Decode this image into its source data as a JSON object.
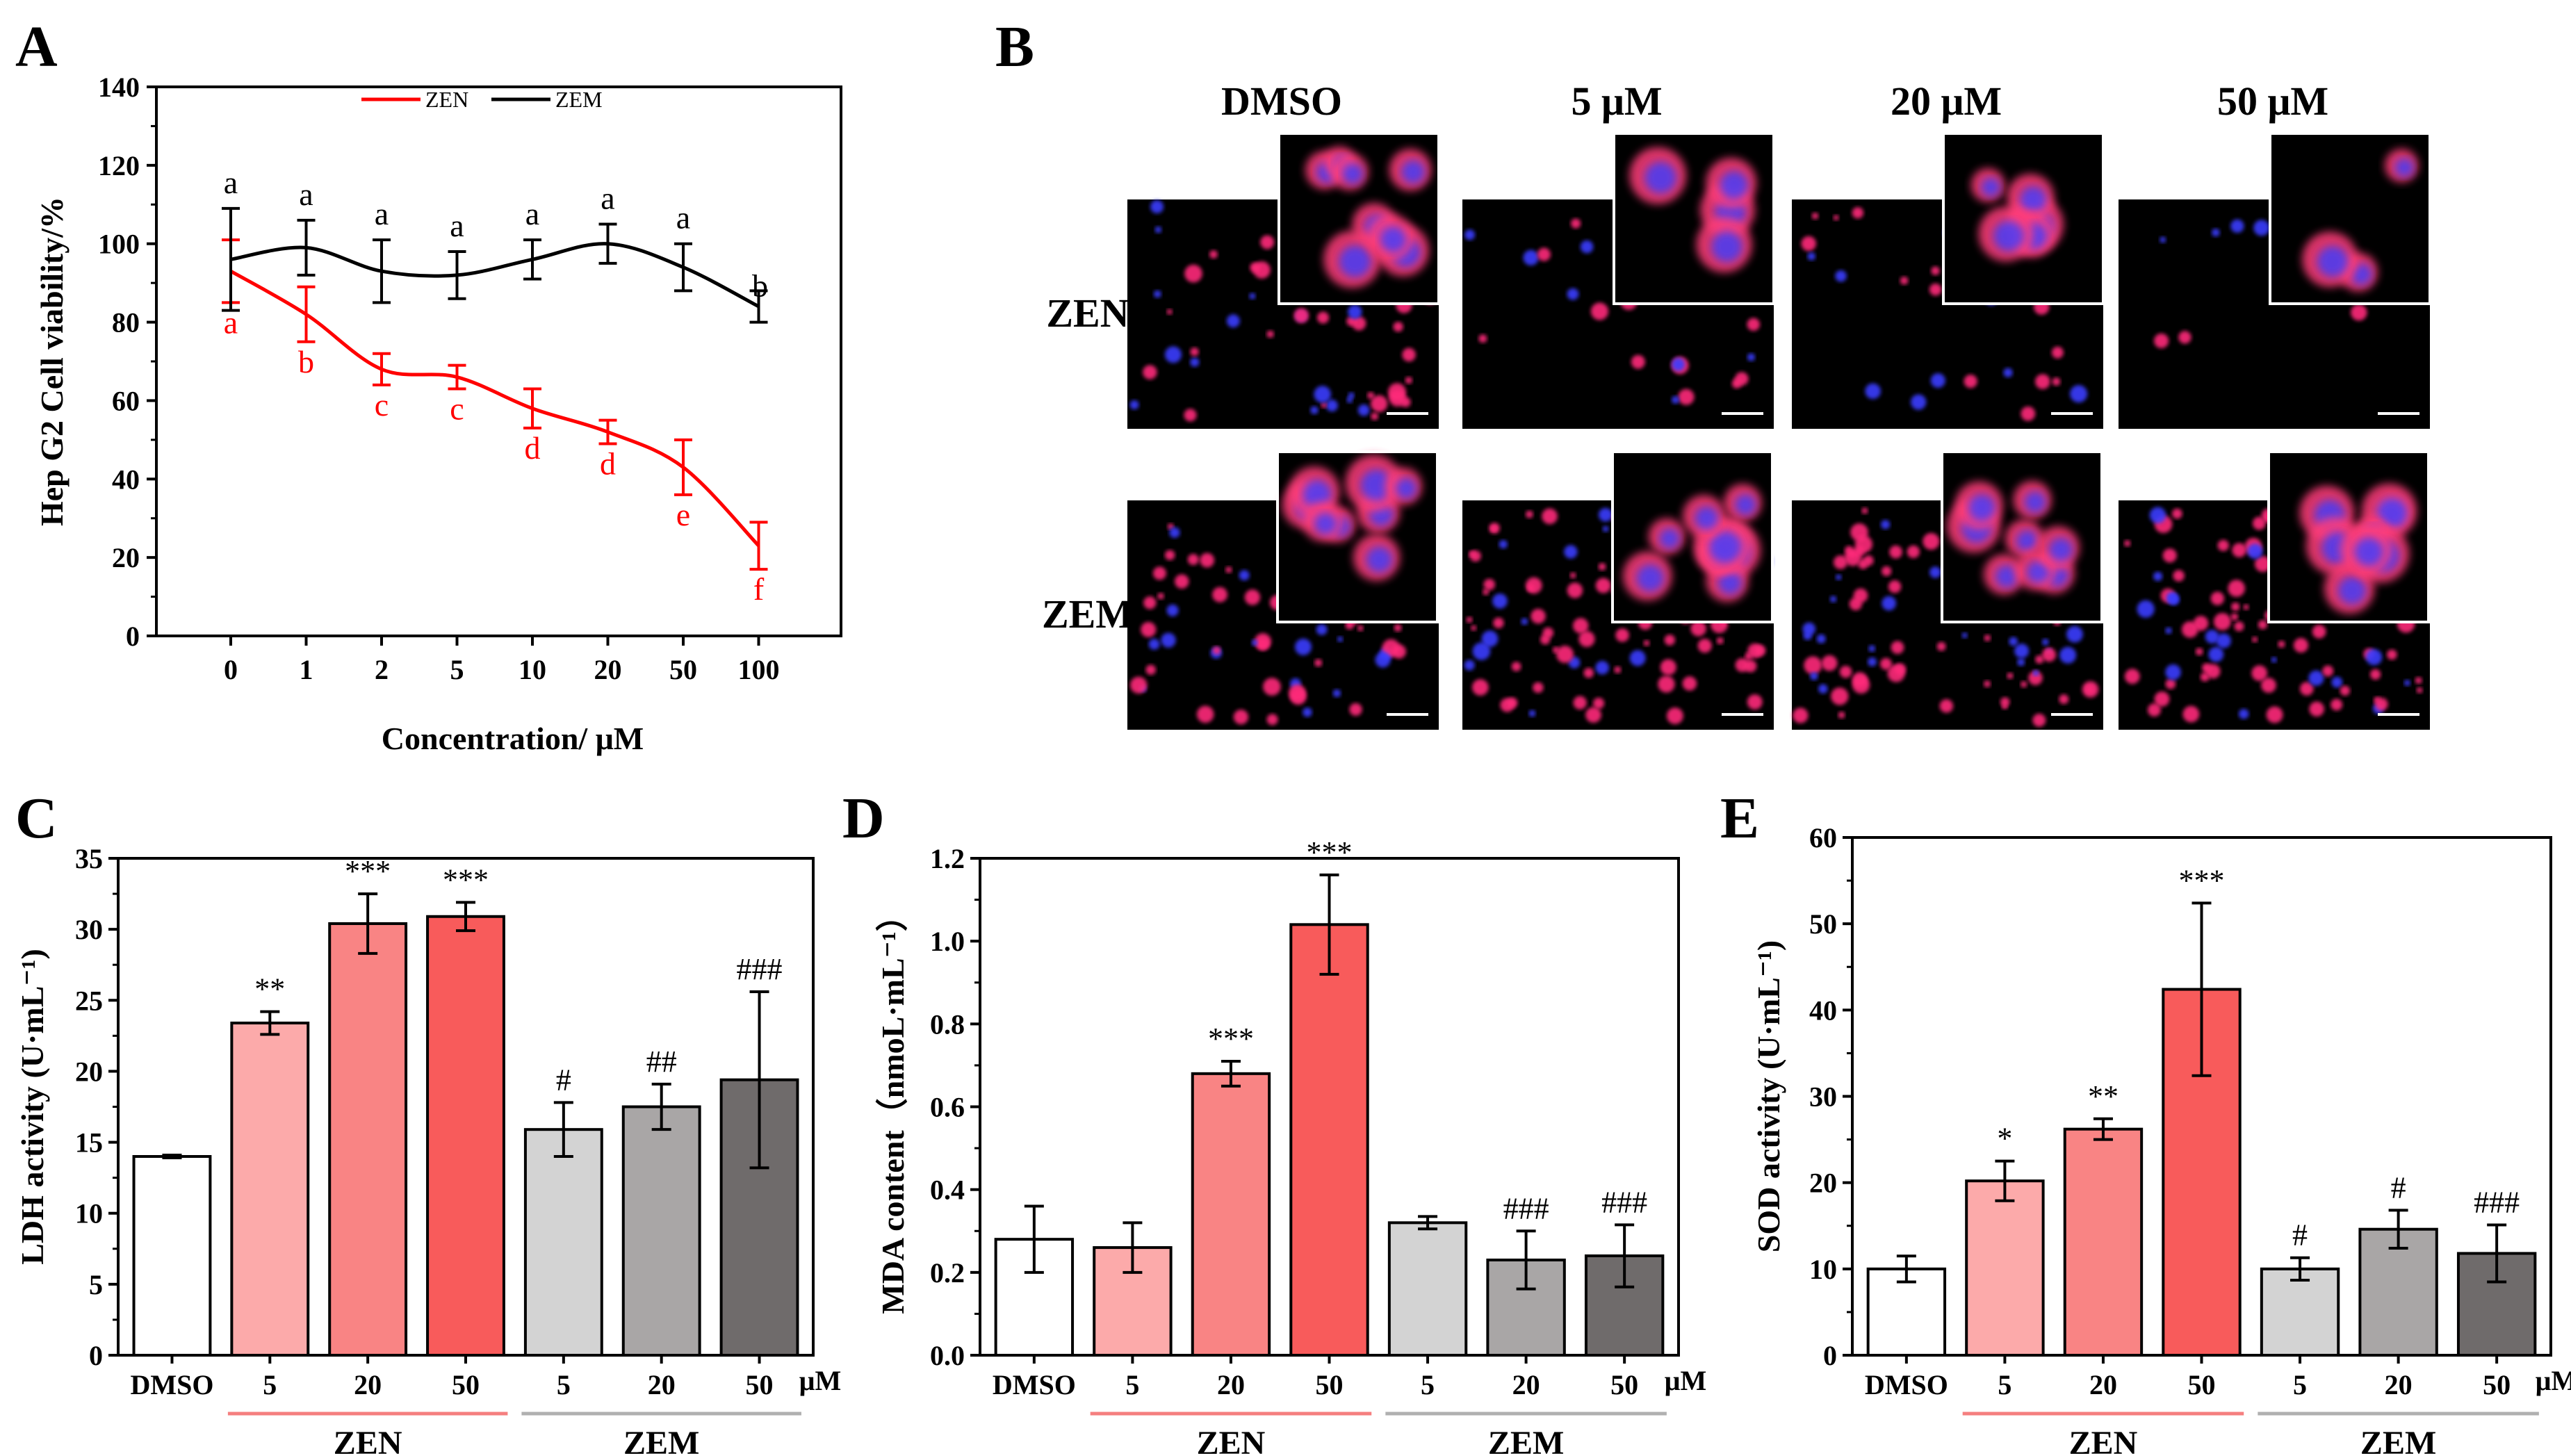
{
  "panels": {
    "A": {
      "letter": "A",
      "chart_data": {
        "type": "line",
        "xlabel": "Concentration/ μM",
        "ylabel": "Hep G2 Cell viability/%",
        "categories": [
          "0",
          "1",
          "2",
          "5",
          "10",
          "20",
          "50",
          "100"
        ],
        "ylim": [
          0,
          140
        ],
        "yticks": [
          "0",
          "20",
          "40",
          "60",
          "80",
          "100",
          "120",
          "140"
        ],
        "series": [
          {
            "name": "ZEN",
            "color": "#ff0000",
            "values": [
              93,
              82,
              68,
              66,
              58,
              52,
              43,
              23
            ],
            "errors": [
              8,
              7,
              4,
              3,
              5,
              3,
              7,
              6
            ],
            "letters": [
              "a",
              "b",
              "c",
              "c",
              "d",
              "d",
              "e",
              "f"
            ]
          },
          {
            "name": "ZEM",
            "color": "#000000",
            "values": [
              96,
              99,
              93,
              92,
              96,
              100,
              94,
              84
            ],
            "errors": [
              13,
              7,
              8,
              6,
              5,
              5,
              6,
              4
            ],
            "letters": [
              "a",
              "a",
              "a",
              "a",
              "a",
              "a",
              "a",
              "b"
            ]
          }
        ]
      }
    },
    "B": {
      "letter": "B",
      "columns": [
        "DMSO",
        "5 μM",
        "20 μM",
        "50 μM"
      ],
      "rows": [
        "ZEN",
        "ZEM"
      ]
    },
    "C": {
      "letter": "C",
      "chart_data": {
        "type": "bar",
        "ylabel": "LDH activity (U·mL⁻¹)",
        "ylim": [
          0,
          35
        ],
        "yticks": [
          "0",
          "5",
          "10",
          "15",
          "20",
          "25",
          "30",
          "35"
        ],
        "categories": [
          "DMSO",
          "5",
          "20",
          "50",
          "5",
          "20",
          "50"
        ],
        "unit": "μM",
        "values": [
          14.0,
          23.4,
          30.4,
          30.9,
          15.9,
          17.5,
          19.4
        ],
        "errors": [
          0.1,
          0.8,
          2.1,
          1.0,
          1.9,
          1.6,
          6.2
        ],
        "sig": [
          "",
          "**",
          "***",
          "***",
          "#",
          "##",
          "###"
        ],
        "colors": [
          "#ffffff",
          "#fcaaaa",
          "#f98484",
          "#f85b5b",
          "#d3d3d3",
          "#a9a6a6",
          "#6f6b6b"
        ],
        "groups": [
          {
            "label": "ZEN",
            "color": "#f57f7f"
          },
          {
            "label": "ZEM",
            "color": "#b0b0b0"
          }
        ]
      }
    },
    "D": {
      "letter": "D",
      "chart_data": {
        "type": "bar",
        "ylabel": "MDA content（nmoL·mL⁻¹）",
        "ylim": [
          0,
          1.2
        ],
        "yticks": [
          "0.0",
          "0.2",
          "0.4",
          "0.6",
          "0.8",
          "1.0",
          "1.2"
        ],
        "categories": [
          "DMSO",
          "5",
          "20",
          "50",
          "5",
          "20",
          "50"
        ],
        "unit": "μM",
        "values": [
          0.28,
          0.26,
          0.68,
          1.04,
          0.32,
          0.23,
          0.24
        ],
        "errors": [
          0.08,
          0.06,
          0.03,
          0.12,
          0.015,
          0.07,
          0.075
        ],
        "sig": [
          "",
          "",
          "***",
          "***",
          "",
          "###",
          "###"
        ],
        "colors": [
          "#ffffff",
          "#fcaaaa",
          "#f98484",
          "#f85b5b",
          "#d3d3d3",
          "#a9a6a6",
          "#6f6b6b"
        ],
        "groups": [
          {
            "label": "ZEN",
            "color": "#f57f7f"
          },
          {
            "label": "ZEM",
            "color": "#b0b0b0"
          }
        ]
      }
    },
    "E": {
      "letter": "E",
      "chart_data": {
        "type": "bar",
        "ylabel": "SOD activity (U·mL⁻¹)",
        "ylim": [
          0,
          60
        ],
        "yticks": [
          "0",
          "10",
          "20",
          "30",
          "40",
          "50",
          "60"
        ],
        "categories": [
          "DMSO",
          "5",
          "20",
          "50",
          "5",
          "20",
          "50"
        ],
        "unit": "μM",
        "values": [
          10.0,
          20.2,
          26.2,
          42.4,
          10.0,
          14.6,
          11.8
        ],
        "errors": [
          1.5,
          2.3,
          1.2,
          10.0,
          1.3,
          2.2,
          3.3
        ],
        "sig": [
          "",
          "*",
          "**",
          "***",
          "#",
          "#",
          "###"
        ],
        "colors": [
          "#ffffff",
          "#fcaaaa",
          "#f98484",
          "#f85b5b",
          "#d3d3d3",
          "#a9a6a6",
          "#6f6b6b"
        ],
        "groups": [
          {
            "label": "ZEN",
            "color": "#f57f7f"
          },
          {
            "label": "ZEM",
            "color": "#b0b0b0"
          }
        ]
      }
    }
  }
}
